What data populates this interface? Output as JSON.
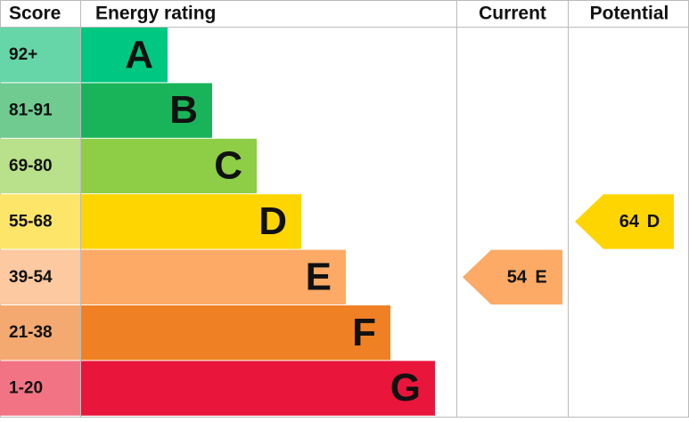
{
  "header": {
    "score": "Score",
    "rating": "Energy rating",
    "current": "Current",
    "potential": "Potential"
  },
  "bands": [
    {
      "score": "92+",
      "letter": "A",
      "color": "#00c781",
      "score_color": "#66d6a8"
    },
    {
      "score": "81-91",
      "letter": "B",
      "color": "#19b459",
      "score_color": "#6fcb90"
    },
    {
      "score": "69-80",
      "letter": "C",
      "color": "#8dce46",
      "score_color": "#b9e08a"
    },
    {
      "score": "55-68",
      "letter": "D",
      "color": "#ffd500",
      "score_color": "#fde56a"
    },
    {
      "score": "39-54",
      "letter": "E",
      "color": "#fcaa65",
      "score_color": "#fdc9a0"
    },
    {
      "score": "21-38",
      "letter": "F",
      "color": "#ef8023",
      "score_color": "#f4a970"
    },
    {
      "score": "1-20",
      "letter": "G",
      "color": "#e9153b",
      "score_color": "#f27484"
    }
  ],
  "current": {
    "value": 54,
    "band": "E"
  },
  "potential": {
    "value": 64,
    "band": "D"
  }
}
